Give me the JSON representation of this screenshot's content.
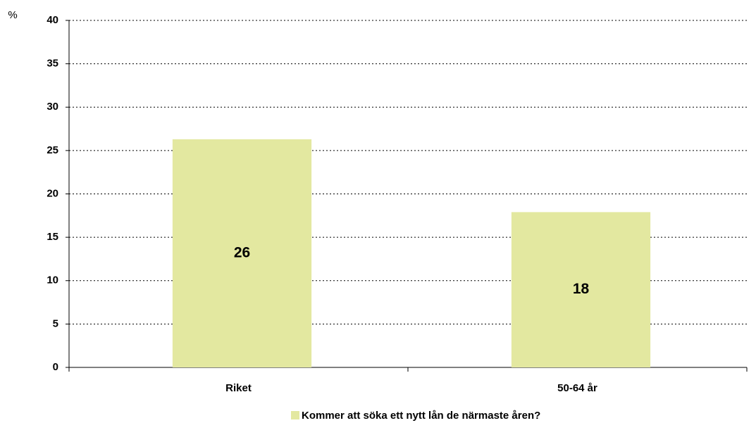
{
  "chart_data": {
    "type": "bar",
    "y_axis_label": "%",
    "categories": [
      "Riket",
      "50-64 år"
    ],
    "series": [
      {
        "name": "Kommer att söka ett nytt lån de närmaste åren?",
        "color": "#e3e8a0",
        "values": [
          26.3,
          17.9
        ],
        "value_labels": [
          "26",
          "18"
        ]
      }
    ],
    "ylim": [
      0,
      40
    ],
    "yticks": [
      0,
      5,
      10,
      15,
      20,
      25,
      30,
      35,
      40
    ],
    "grid": true,
    "legend": "bottom"
  }
}
